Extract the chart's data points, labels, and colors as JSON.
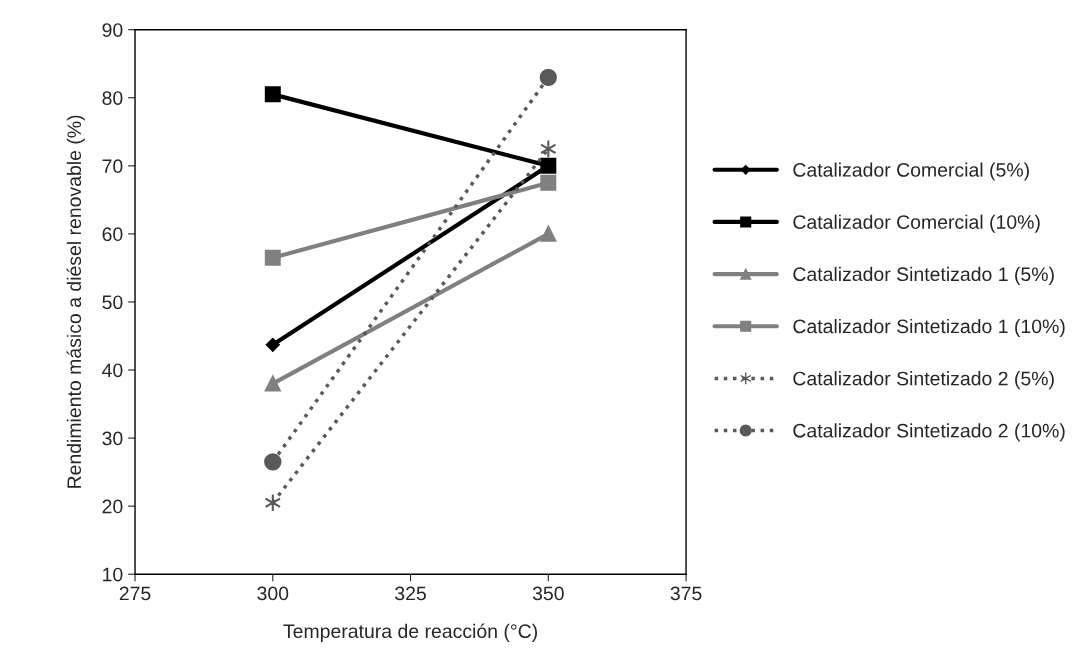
{
  "chart_data": {
    "type": "line",
    "xlabel": "Temperatura de reacción (°C)",
    "ylabel": "Rendimiento másico a diésel renovable (%)",
    "x": [
      300,
      350
    ],
    "xlim": [
      275,
      375
    ],
    "xticks": [
      275,
      300,
      325,
      350,
      375
    ],
    "ylim": [
      10,
      90
    ],
    "yticks": [
      10,
      20,
      30,
      40,
      50,
      60,
      70,
      80,
      90
    ],
    "grid": false,
    "legend": "right",
    "series": [
      {
        "name": "Catalizador Comercial (5%)",
        "color": "#000000",
        "values": [
          43.7,
          70
        ],
        "marker": "diamond",
        "line_style": "solid"
      },
      {
        "name": "Catalizador Comercial (10%)",
        "color": "#000000",
        "values": [
          80.5,
          70
        ],
        "marker": "square",
        "line_style": "solid"
      },
      {
        "name": "Catalizador Sintetizado 1 (5%)",
        "color": "#808080",
        "values": [
          38,
          60
        ],
        "marker": "triangle",
        "line_style": "solid"
      },
      {
        "name": "Catalizador Sintetizado 1 (10%)",
        "color": "#808080",
        "values": [
          56.5,
          67.5
        ],
        "marker": "square",
        "line_style": "solid"
      },
      {
        "name": "Catalizador Sintetizado 2 (5%)",
        "color": "#595959",
        "values": [
          20.5,
          72.5
        ],
        "marker": "cross",
        "line_style": "dotted"
      },
      {
        "name": "Catalizador Sintetizado 2 (10%)",
        "color": "#595959",
        "values": [
          26.5,
          83
        ],
        "marker": "circle",
        "line_style": "dotted"
      }
    ]
  }
}
